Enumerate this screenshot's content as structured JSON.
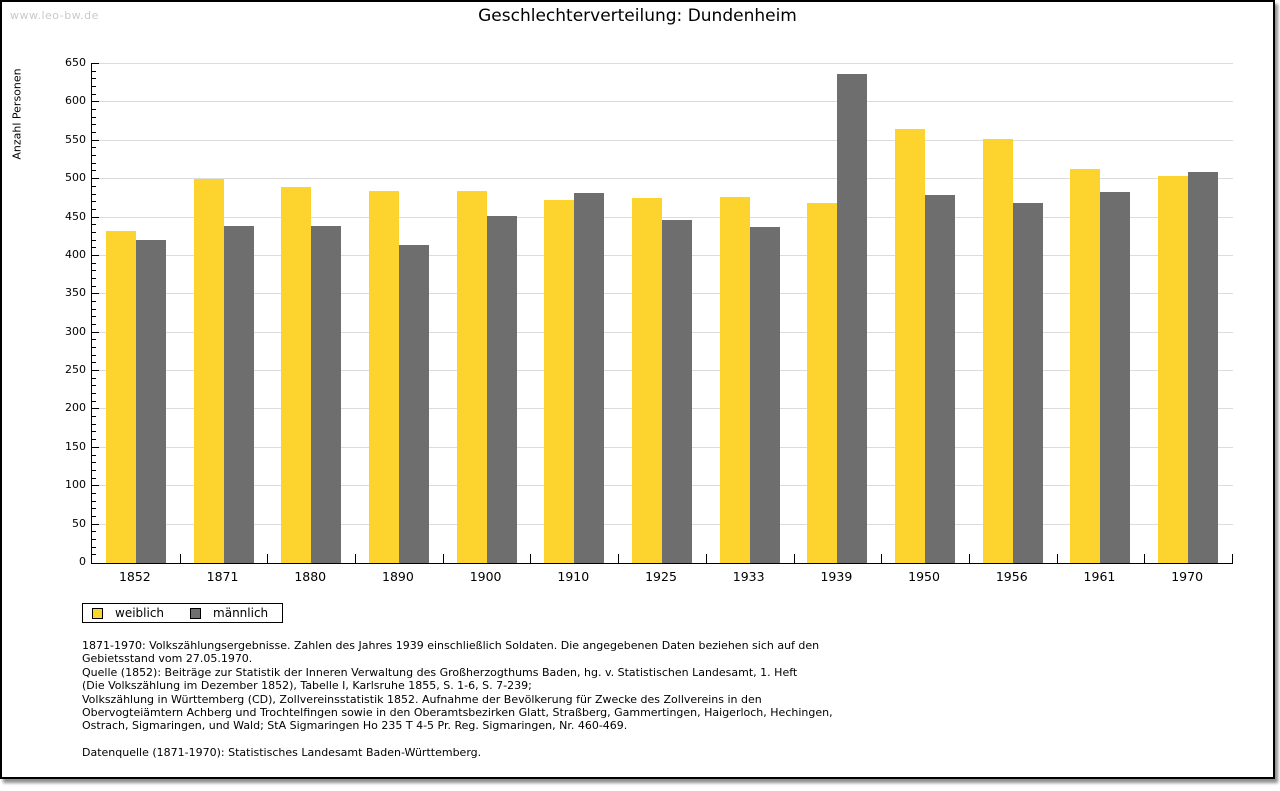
{
  "watermark": "www.leo-bw.de",
  "chart_data": {
    "type": "bar",
    "title": "Geschlechterverteilung: Dundenheim",
    "ylabel": "Anzahl Personen",
    "xlabel": "",
    "ylim": [
      0,
      650
    ],
    "ytick_major": 50,
    "ytick_minor": 10,
    "grid": true,
    "legend_position": "bottom-left",
    "categories": [
      "1852",
      "1871",
      "1880",
      "1890",
      "1900",
      "1910",
      "1925",
      "1933",
      "1939",
      "1950",
      "1956",
      "1961",
      "1970"
    ],
    "series": [
      {
        "name": "weiblich",
        "color": "#FCD42D",
        "values": [
          433,
          500,
          490,
          485,
          485,
          473,
          475,
          477,
          469,
          566,
          552,
          513,
          504
        ]
      },
      {
        "name": "männlich",
        "color": "#6E6E6E",
        "values": [
          421,
          439,
          439,
          414,
          452,
          482,
          447,
          438,
          637,
          480,
          469,
          483,
          509
        ]
      }
    ]
  },
  "footer": {
    "notes": [
      "1871-1970: Volkszählungsergebnisse. Zahlen des Jahres 1939 einschließlich Soldaten. Die angegebenen Daten beziehen sich auf den",
      "Gebietsstand vom 27.05.1970.",
      "Quelle (1852): Beiträge zur Statistik der Inneren Verwaltung des Großherzogthums Baden, hg. v. Statistischen Landesamt, 1. Heft",
      "(Die Volkszählung im Dezember 1852), Tabelle I, Karlsruhe 1855, S. 1-6, S. 7-239;",
      "Volkszählung in Württemberg (CD), Zollvereinsstatistik 1852. Aufnahme der Bevölkerung für Zwecke des Zollvereins in den",
      "Obervogteiämtern Achberg und Trochtelfingen sowie in den Oberamtsbezirken Glatt, Straßberg, Gammertingen, Haigerloch, Hechingen,",
      "Ostrach, Sigmaringen, und Wald; StA Sigmaringen Ho 235 T 4-5 Pr. Reg. Sigmaringen, Nr. 460-469."
    ],
    "datasource": "Datenquelle (1871-1970): Statistisches Landesamt Baden-Württemberg."
  },
  "colors": {
    "gridline": "#DCDCDC",
    "axis": "#000000",
    "watermark": "#C9C9C9",
    "page_border": "#000000"
  }
}
